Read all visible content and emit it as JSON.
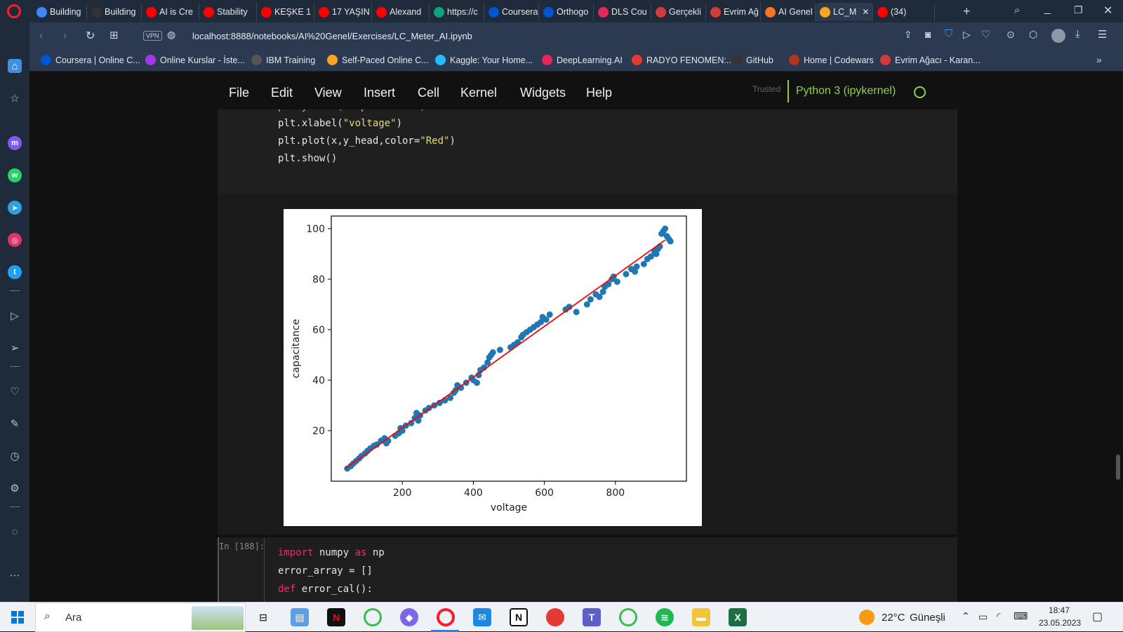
{
  "browser": {
    "tabs": [
      {
        "label": "Building",
        "icon": "google-icon",
        "color": "#4285f4"
      },
      {
        "label": "Building",
        "icon": "github-icon",
        "color": "#333333"
      },
      {
        "label": "AI is Cre",
        "icon": "youtube-icon",
        "color": "#ff0000"
      },
      {
        "label": "Stability",
        "icon": "youtube-icon",
        "color": "#ff0000"
      },
      {
        "label": "KEŞKE 1",
        "icon": "youtube-icon",
        "color": "#ff0000"
      },
      {
        "label": "17 YAŞIN",
        "icon": "youtube-icon",
        "color": "#ff0000"
      },
      {
        "label": "Alexand",
        "icon": "youtube-icon",
        "color": "#ff0000"
      },
      {
        "label": "https://c",
        "icon": "chatgpt-icon",
        "color": "#10a37f"
      },
      {
        "label": "Coursera",
        "icon": "coursera-icon",
        "color": "#0056d2"
      },
      {
        "label": "Orthogo",
        "icon": "coursera-icon",
        "color": "#0056d2"
      },
      {
        "label": "DLS Cou",
        "icon": "deeplearning-icon",
        "color": "#e02956"
      },
      {
        "label": "Gerçekli",
        "icon": "evrim-agaci-icon",
        "color": "#d23b3b"
      },
      {
        "label": "Evrim Ağ",
        "icon": "evrim-agaci-icon",
        "color": "#d23b3b"
      },
      {
        "label": "AI Genel",
        "icon": "jupyter-icon",
        "color": "#f37626"
      },
      {
        "label": "LC_M",
        "icon": "notebook-icon",
        "color": "#f5a623"
      },
      {
        "label": "(34)",
        "icon": "youtube-icon",
        "color": "#ff0000"
      }
    ],
    "url": "localhost:8888/notebooks/AI%20Genel/Exercises/LC_Meter_AI.ipynb",
    "vpn_label": "VPN",
    "bookmarks": [
      {
        "label": "Coursera | Online C...",
        "icon": "coursera-icon",
        "color": "#0056d2"
      },
      {
        "label": "Online Kurslar - İste...",
        "icon": "udemy-icon",
        "color": "#a435f0"
      },
      {
        "label": "IBM Training",
        "icon": "ibm-icon",
        "color": "#555555"
      },
      {
        "label": "Self-Paced Online C...",
        "icon": "rocket-icon",
        "color": "#f5a623"
      },
      {
        "label": "Kaggle: Your Home...",
        "icon": "kaggle-icon",
        "color": "#20beff"
      },
      {
        "label": "DeepLearning.AI",
        "icon": "deeplearning-icon",
        "color": "#e02956"
      },
      {
        "label": "RADYO FENOMEN:...",
        "icon": "radio-icon",
        "color": "#e53935"
      },
      {
        "label": "GitHub",
        "icon": "github-icon",
        "color": "#333333"
      },
      {
        "label": "Home | Codewars",
        "icon": "codewars-icon",
        "color": "#b1361e"
      },
      {
        "label": "Evrim Ağacı - Karan...",
        "icon": "evrim-agaci-icon",
        "color": "#d23b3b"
      }
    ]
  },
  "jupyter": {
    "menu": [
      "File",
      "Edit",
      "View",
      "Insert",
      "Cell",
      "Kernel",
      "Widgets",
      "Help"
    ],
    "trusted_label": "Trusted",
    "kernel_label": "Python 3 (ipykernel)",
    "code_lines": [
      {
        "pre": "plt.xlabel(",
        "str": "\"voltage\"",
        "post": ")"
      },
      {
        "pre": "plt.plot(x,y_head,color=",
        "str": "\"Red\"",
        "post": ")"
      },
      {
        "pre": "plt.show()",
        "str": "",
        "post": ""
      }
    ],
    "next_cell": {
      "prompt": "In [188]:",
      "line1_kw": "import",
      "line1_mid": " numpy ",
      "line1_kw2": "as",
      "line1_end": " np",
      "line2": "error_array = []",
      "line3_kw": "def",
      "line3_end": " error_cal():"
    }
  },
  "chart_data": {
    "type": "scatter",
    "xlabel": "voltage",
    "ylabel": "capacitance",
    "xlim": [
      0,
      1000
    ],
    "ylim": [
      0,
      105
    ],
    "xticks": [
      200,
      400,
      600,
      800
    ],
    "yticks": [
      20,
      40,
      60,
      80,
      100
    ],
    "point_color": "#1f77b4",
    "line_color": "#ff0000",
    "fit_line": {
      "x": [
        40,
        940
      ],
      "y": [
        5,
        95.5
      ]
    },
    "points": [
      [
        45,
        5
      ],
      [
        55,
        6
      ],
      [
        62,
        7
      ],
      [
        70,
        8
      ],
      [
        78,
        9
      ],
      [
        85,
        10
      ],
      [
        95,
        11
      ],
      [
        102,
        12
      ],
      [
        110,
        13
      ],
      [
        120,
        14
      ],
      [
        128,
        14.5
      ],
      [
        140,
        16
      ],
      [
        150,
        17
      ],
      [
        155,
        15
      ],
      [
        160,
        16
      ],
      [
        180,
        18
      ],
      [
        190,
        19
      ],
      [
        195,
        21
      ],
      [
        200,
        20
      ],
      [
        210,
        22
      ],
      [
        225,
        23
      ],
      [
        235,
        25
      ],
      [
        240,
        27
      ],
      [
        245,
        24
      ],
      [
        250,
        26
      ],
      [
        265,
        28
      ],
      [
        275,
        29
      ],
      [
        290,
        30
      ],
      [
        305,
        31
      ],
      [
        320,
        32
      ],
      [
        335,
        33
      ],
      [
        345,
        35
      ],
      [
        350,
        36
      ],
      [
        355,
        38
      ],
      [
        365,
        37
      ],
      [
        380,
        39
      ],
      [
        395,
        41
      ],
      [
        400,
        40
      ],
      [
        410,
        39
      ],
      [
        415,
        42
      ],
      [
        420,
        44
      ],
      [
        430,
        45
      ],
      [
        440,
        47
      ],
      [
        445,
        49
      ],
      [
        450,
        50
      ],
      [
        455,
        51
      ],
      [
        475,
        52
      ],
      [
        505,
        53
      ],
      [
        515,
        54
      ],
      [
        525,
        55
      ],
      [
        535,
        57
      ],
      [
        540,
        58
      ],
      [
        550,
        59
      ],
      [
        560,
        60
      ],
      [
        570,
        61
      ],
      [
        580,
        62
      ],
      [
        590,
        63
      ],
      [
        595,
        65
      ],
      [
        605,
        64
      ],
      [
        615,
        66
      ],
      [
        660,
        68
      ],
      [
        670,
        69
      ],
      [
        690,
        67
      ],
      [
        720,
        70
      ],
      [
        730,
        72
      ],
      [
        745,
        74
      ],
      [
        755,
        73
      ],
      [
        765,
        75
      ],
      [
        770,
        77
      ],
      [
        780,
        78
      ],
      [
        790,
        80
      ],
      [
        795,
        81
      ],
      [
        805,
        79
      ],
      [
        830,
        82
      ],
      [
        845,
        84
      ],
      [
        855,
        83
      ],
      [
        860,
        85
      ],
      [
        880,
        86
      ],
      [
        890,
        88
      ],
      [
        900,
        89
      ],
      [
        910,
        91
      ],
      [
        915,
        90
      ],
      [
        920,
        92
      ],
      [
        925,
        93
      ],
      [
        930,
        98
      ],
      [
        935,
        99
      ],
      [
        940,
        100
      ],
      [
        945,
        97
      ],
      [
        950,
        96
      ],
      [
        955,
        95
      ]
    ]
  },
  "taskbar": {
    "search_placeholder": "Ara",
    "weather_temp": "22°C",
    "weather_text": "Güneşli",
    "time": "18:47",
    "date": "23.05.2023"
  }
}
